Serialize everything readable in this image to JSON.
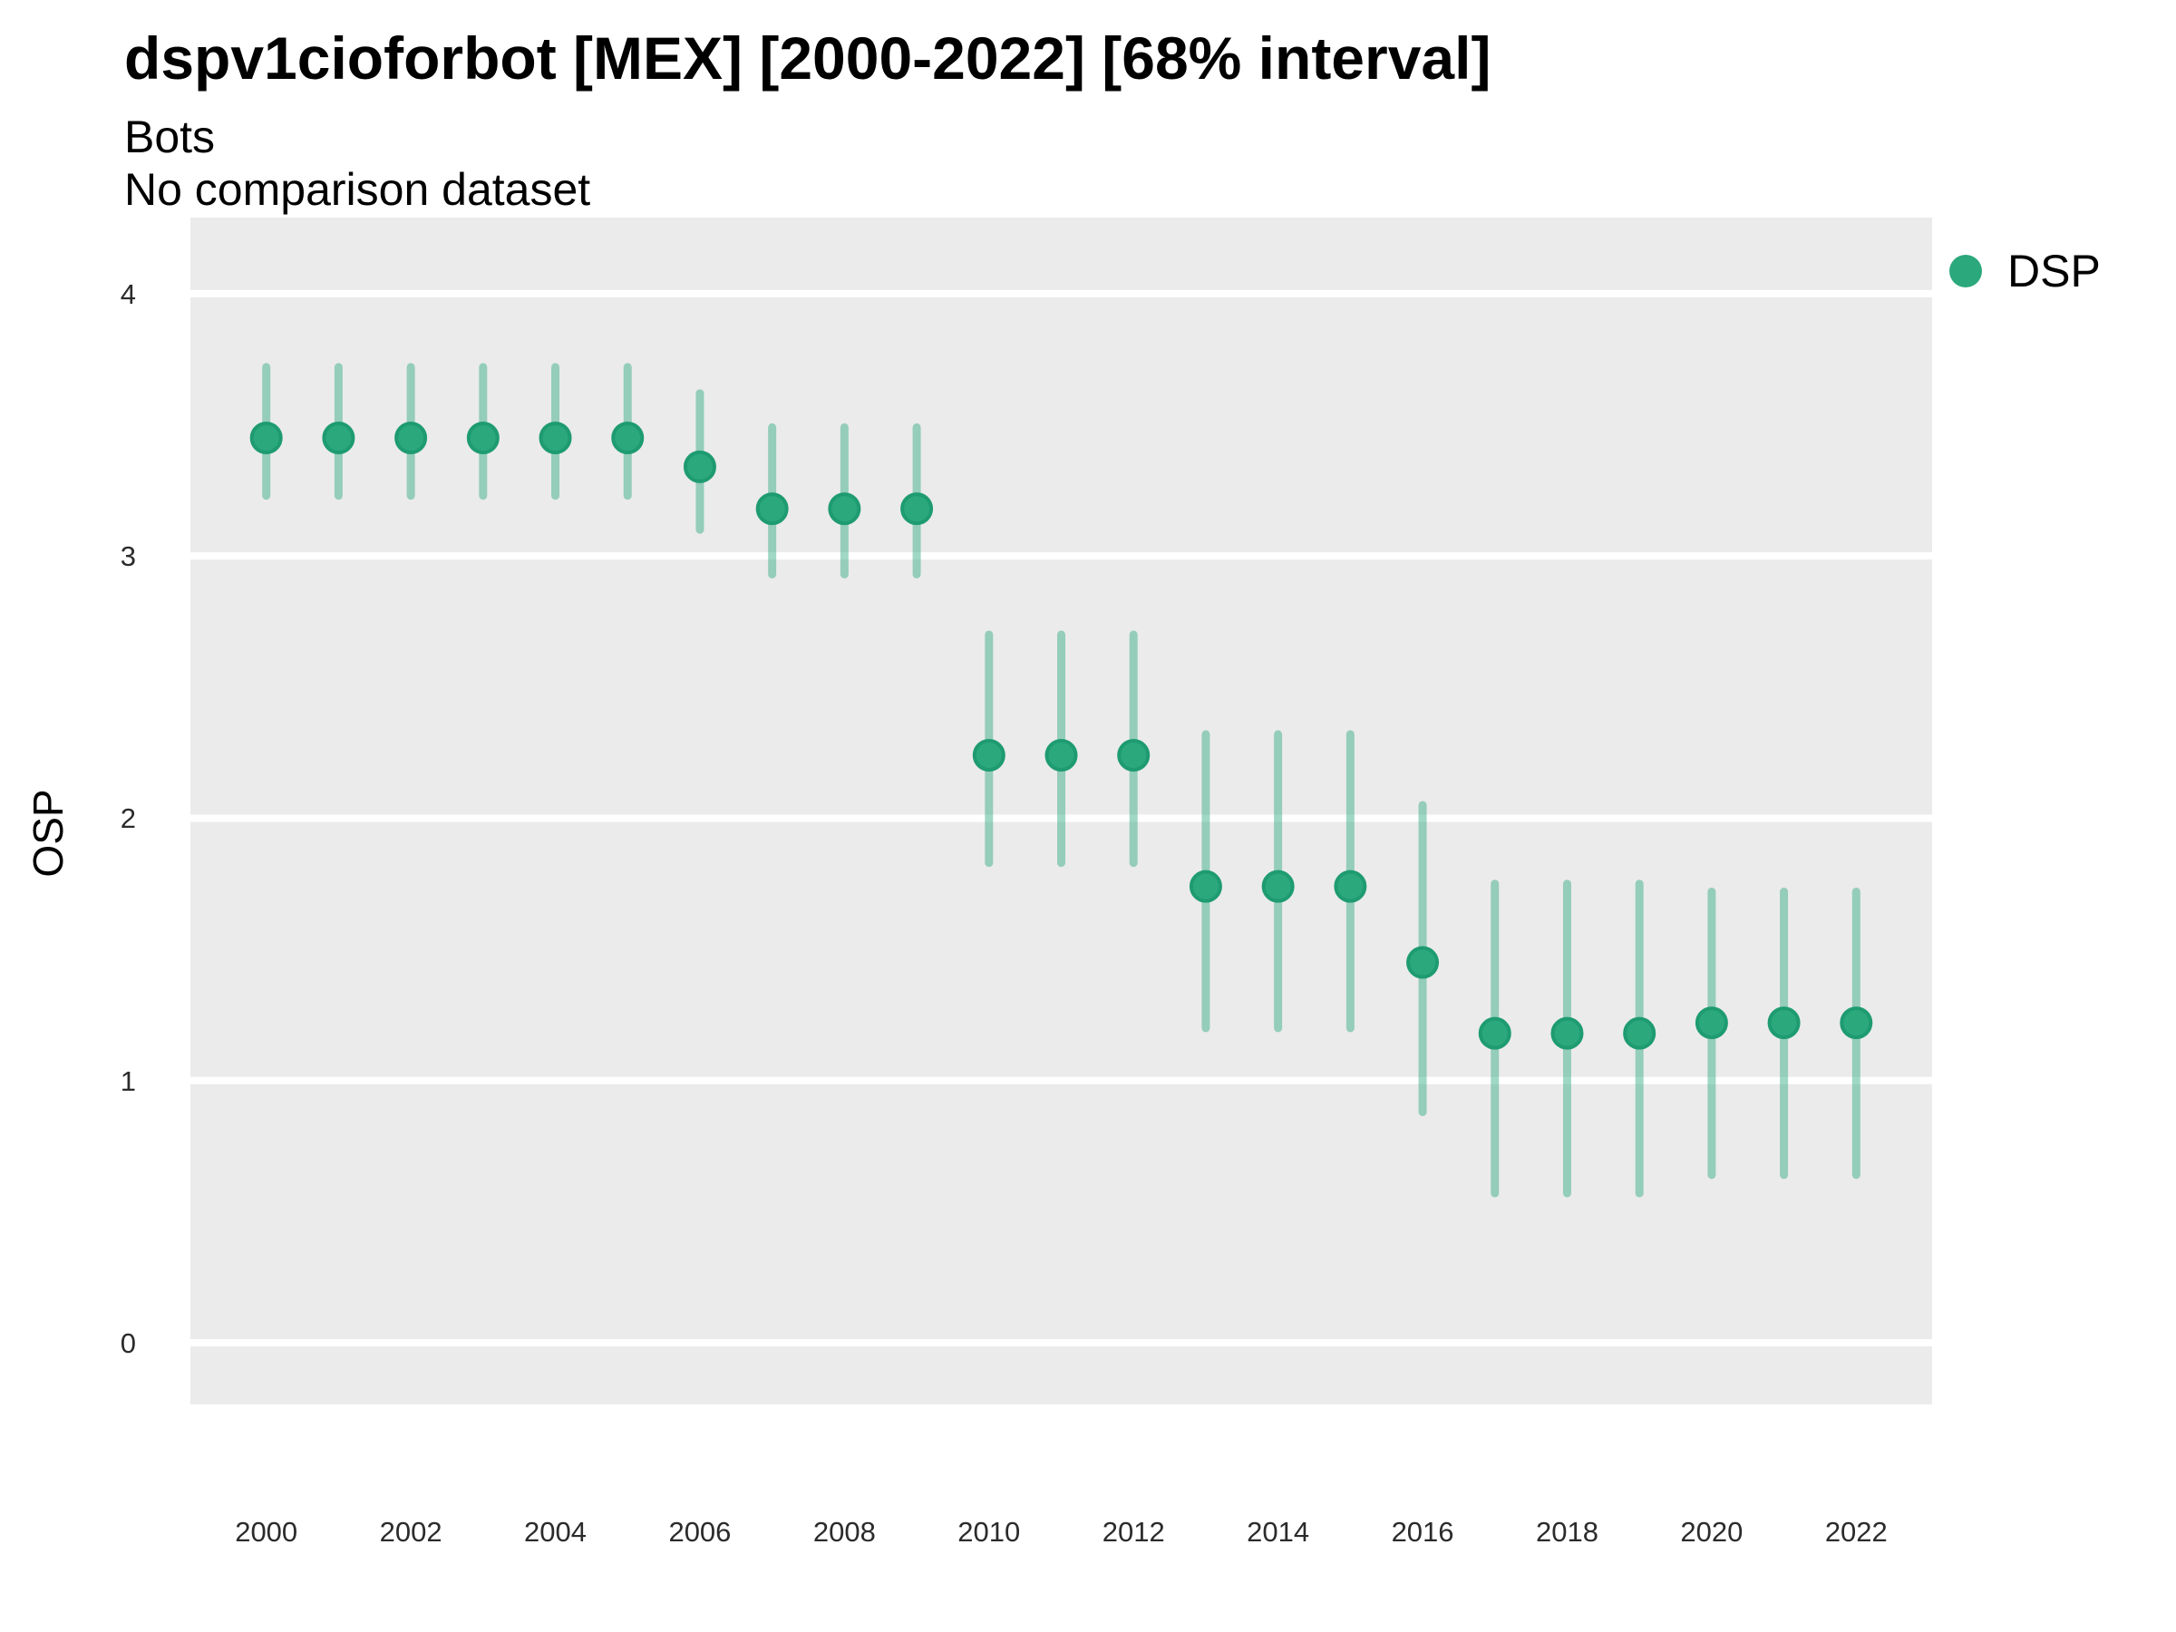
{
  "chart_data": {
    "type": "scatter",
    "title": "dspv1cioforbot [MEX] [2000-2022] [68% interval]",
    "subtitle": "Bots",
    "note": "No comparison dataset",
    "xlabel": "",
    "ylabel": "OSP",
    "interval": "68%",
    "legend_position": "right",
    "grid": "major horizontal white lines on gray panel",
    "panel_color": "#EBEBEB",
    "gridline_color": "#FFFFFF",
    "x_domain": [
      1998.95,
      2023.05
    ],
    "y_domain": [
      -0.235,
      4.29
    ],
    "x_ticks": [
      2000,
      2002,
      2004,
      2006,
      2008,
      2010,
      2012,
      2014,
      2016,
      2018,
      2020,
      2022
    ],
    "y_ticks": [
      0,
      1,
      2,
      3,
      4
    ],
    "series": [
      {
        "name": "DSP",
        "color": "#2BA87C",
        "point_stroke": "#1E9B71",
        "errorbar_color": "rgba(43,168,124,0.45)",
        "points": [
          {
            "x": 2000,
            "y": 3.45,
            "lo": 3.23,
            "hi": 3.72
          },
          {
            "x": 2001,
            "y": 3.45,
            "lo": 3.23,
            "hi": 3.72
          },
          {
            "x": 2002,
            "y": 3.45,
            "lo": 3.23,
            "hi": 3.72
          },
          {
            "x": 2003,
            "y": 3.45,
            "lo": 3.23,
            "hi": 3.72
          },
          {
            "x": 2004,
            "y": 3.45,
            "lo": 3.23,
            "hi": 3.72
          },
          {
            "x": 2005,
            "y": 3.45,
            "lo": 3.23,
            "hi": 3.72
          },
          {
            "x": 2006,
            "y": 3.34,
            "lo": 3.1,
            "hi": 3.62
          },
          {
            "x": 2007,
            "y": 3.18,
            "lo": 2.93,
            "hi": 3.49
          },
          {
            "x": 2008,
            "y": 3.18,
            "lo": 2.93,
            "hi": 3.49
          },
          {
            "x": 2009,
            "y": 3.18,
            "lo": 2.93,
            "hi": 3.49
          },
          {
            "x": 2010,
            "y": 2.24,
            "lo": 1.83,
            "hi": 2.7
          },
          {
            "x": 2011,
            "y": 2.24,
            "lo": 1.83,
            "hi": 2.7
          },
          {
            "x": 2012,
            "y": 2.24,
            "lo": 1.83,
            "hi": 2.7
          },
          {
            "x": 2013,
            "y": 1.74,
            "lo": 1.2,
            "hi": 2.32
          },
          {
            "x": 2014,
            "y": 1.74,
            "lo": 1.2,
            "hi": 2.32
          },
          {
            "x": 2015,
            "y": 1.74,
            "lo": 1.2,
            "hi": 2.32
          },
          {
            "x": 2016,
            "y": 1.45,
            "lo": 0.88,
            "hi": 2.05
          },
          {
            "x": 2017,
            "y": 1.18,
            "lo": 0.57,
            "hi": 1.75
          },
          {
            "x": 2018,
            "y": 1.18,
            "lo": 0.57,
            "hi": 1.75
          },
          {
            "x": 2019,
            "y": 1.18,
            "lo": 0.57,
            "hi": 1.75
          },
          {
            "x": 2020,
            "y": 1.22,
            "lo": 0.64,
            "hi": 1.72
          },
          {
            "x": 2021,
            "y": 1.22,
            "lo": 0.64,
            "hi": 1.72
          },
          {
            "x": 2022,
            "y": 1.22,
            "lo": 0.64,
            "hi": 1.72
          }
        ]
      }
    ]
  }
}
